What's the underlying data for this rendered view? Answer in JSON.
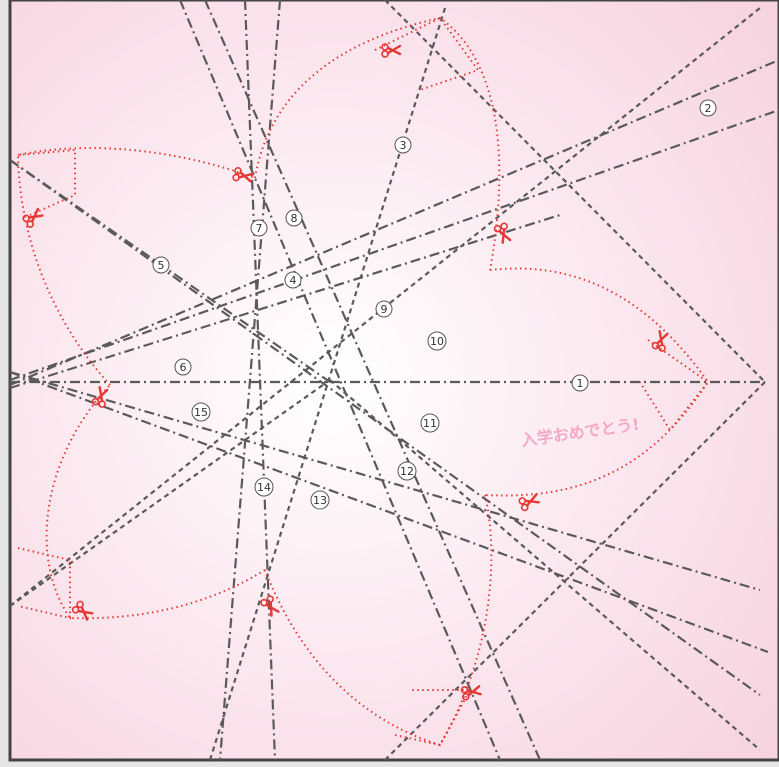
{
  "diagram": {
    "greeting_text": "入学おめでとう!",
    "fold_labels": [
      "1",
      "2",
      "3",
      "4",
      "5",
      "6",
      "7",
      "8",
      "9",
      "10",
      "11",
      "12",
      "13",
      "14",
      "15"
    ],
    "colors": {
      "paper_top": "#f9dde6",
      "paper_center": "#ffffff",
      "paper_edge": "#f6d3df",
      "fold_line": "#5a5a5a",
      "cut_line": "#e53935",
      "greeting": "#f4a9c4"
    },
    "icons": {
      "scissors": "scissors-icon"
    }
  }
}
